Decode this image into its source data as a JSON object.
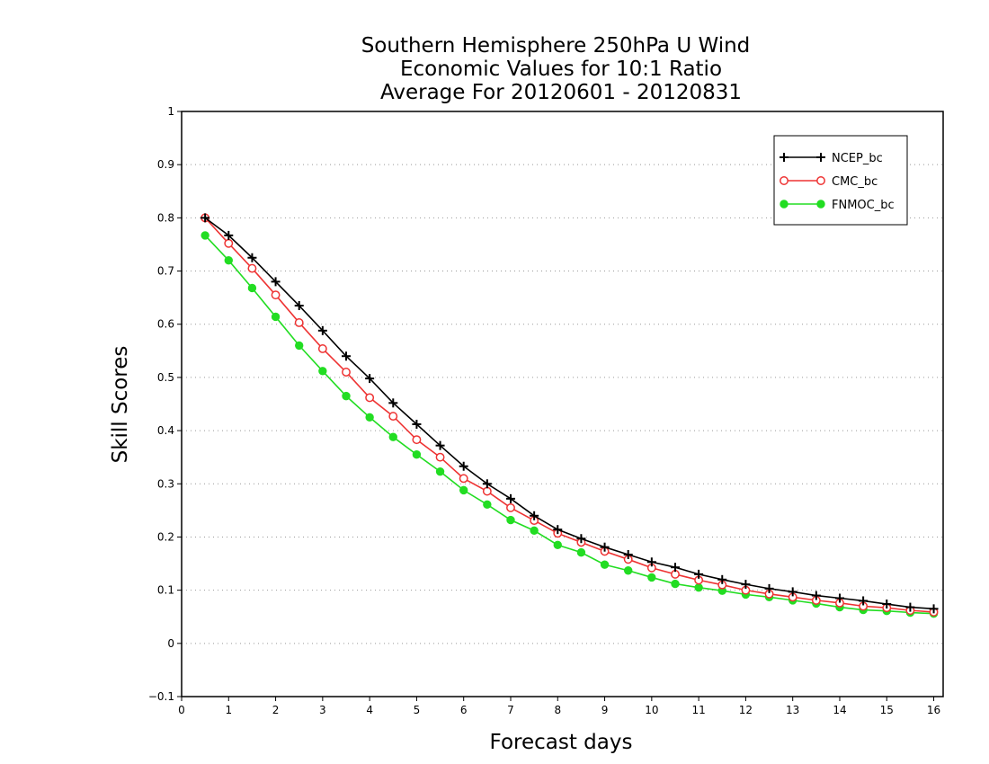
{
  "chart_data": {
    "type": "line",
    "title": [
      "Southern Hemisphere 250hPa U Wind",
      "Economic Values for 10:1 Ratio",
      "Average For 20120601 - 20120831"
    ],
    "xlabel": "Forecast days",
    "ylabel": "Skill Scores",
    "xlim": [
      0,
      16.2
    ],
    "ylim": [
      -0.1,
      1
    ],
    "xticks": [
      0,
      1,
      2,
      3,
      4,
      5,
      6,
      7,
      8,
      9,
      10,
      11,
      12,
      13,
      14,
      15,
      16
    ],
    "yticks": [
      -0.1,
      0,
      0.1,
      0.2,
      0.3,
      0.4,
      0.5,
      0.6,
      0.7,
      0.8,
      0.9,
      1
    ],
    "ytick_labels": [
      "−0.1",
      "0",
      "0.1",
      "0.2",
      "0.3",
      "0.4",
      "0.5",
      "0.6",
      "0.7",
      "0.8",
      "0.9",
      "1"
    ],
    "grid": "horizontal dotted",
    "legend_position": "top-right",
    "x": [
      0.5,
      1,
      1.5,
      2,
      2.5,
      3,
      3.5,
      4,
      4.5,
      5,
      5.5,
      6,
      6.5,
      7,
      7.5,
      8,
      8.5,
      9,
      9.5,
      10,
      10.5,
      11,
      11.5,
      12,
      12.5,
      13,
      13.5,
      14,
      14.5,
      15,
      15.5,
      16
    ],
    "series": [
      {
        "name": "NCEP_bc",
        "color": "#000000",
        "marker": "plus",
        "values": [
          0.8,
          0.767,
          0.725,
          0.68,
          0.635,
          0.588,
          0.54,
          0.498,
          0.452,
          0.412,
          0.372,
          0.333,
          0.3,
          0.272,
          0.24,
          0.214,
          0.197,
          0.181,
          0.167,
          0.153,
          0.143,
          0.13,
          0.12,
          0.111,
          0.103,
          0.097,
          0.09,
          0.085,
          0.08,
          0.074,
          0.068,
          0.065
        ]
      },
      {
        "name": "CMC_bc",
        "color": "#ee3333",
        "marker": "open-circle",
        "values": [
          0.8,
          0.752,
          0.705,
          0.655,
          0.603,
          0.554,
          0.51,
          0.462,
          0.427,
          0.383,
          0.35,
          0.31,
          0.286,
          0.255,
          0.231,
          0.207,
          0.19,
          0.173,
          0.158,
          0.142,
          0.13,
          0.119,
          0.11,
          0.1,
          0.093,
          0.087,
          0.081,
          0.076,
          0.07,
          0.067,
          0.062,
          0.059
        ]
      },
      {
        "name": "FNMOC_bc",
        "color": "#22dd22",
        "marker": "filled-circle",
        "values": [
          0.767,
          0.72,
          0.668,
          0.614,
          0.56,
          0.512,
          0.465,
          0.425,
          0.388,
          0.355,
          0.323,
          0.288,
          0.261,
          0.232,
          0.212,
          0.185,
          0.171,
          0.148,
          0.137,
          0.124,
          0.112,
          0.105,
          0.099,
          0.092,
          0.087,
          0.081,
          0.075,
          0.068,
          0.063,
          0.061,
          0.058,
          0.056
        ]
      }
    ]
  }
}
